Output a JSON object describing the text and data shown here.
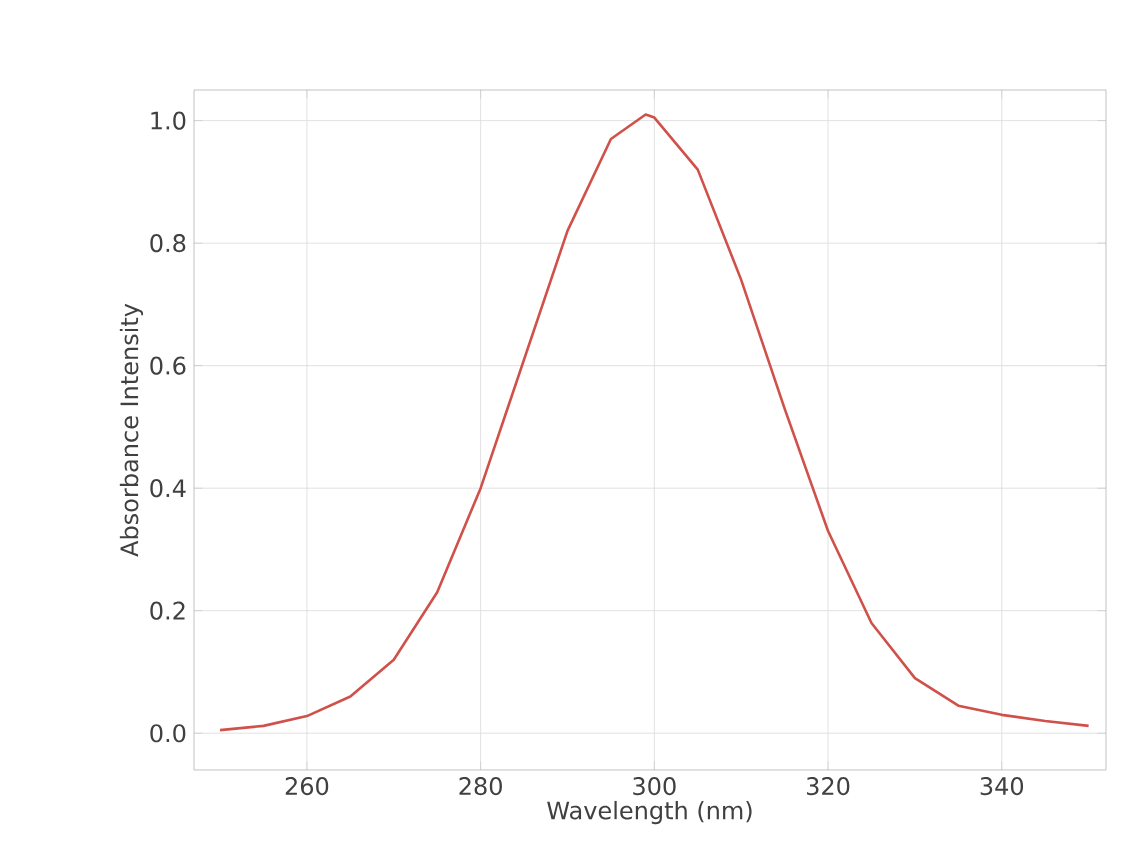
{
  "chart_data": {
    "type": "line",
    "xlabel": "Wavelength (nm)",
    "ylabel": "Absorbance Intensity",
    "x": [
      250,
      255,
      260,
      265,
      270,
      275,
      280,
      285,
      290,
      295,
      299,
      300,
      305,
      310,
      315,
      320,
      325,
      330,
      335,
      340,
      345,
      350
    ],
    "series": [
      {
        "color": "#d0504a",
        "values": [
          0.005,
          0.012,
          0.028,
          0.06,
          0.12,
          0.23,
          0.4,
          0.61,
          0.82,
          0.97,
          1.01,
          1.005,
          0.92,
          0.74,
          0.53,
          0.33,
          0.18,
          0.09,
          0.045,
          0.03,
          0.02,
          0.012
        ]
      }
    ],
    "xlim": [
      247,
      352
    ],
    "ylim": [
      -0.06,
      1.05
    ],
    "xticks": [
      260,
      280,
      300,
      320,
      340
    ],
    "yticks": [
      {
        "value": 0,
        "label": "0.0"
      },
      {
        "value": 0.2,
        "label": "0.2"
      },
      {
        "value": 0.4,
        "label": "0.4"
      },
      {
        "value": 0.6,
        "label": "0.6"
      },
      {
        "value": 0.8,
        "label": "0.8"
      },
      {
        "value": 1.0,
        "label": "1.0"
      }
    ],
    "grid": true,
    "marker": "none",
    "line_style": "solid"
  }
}
